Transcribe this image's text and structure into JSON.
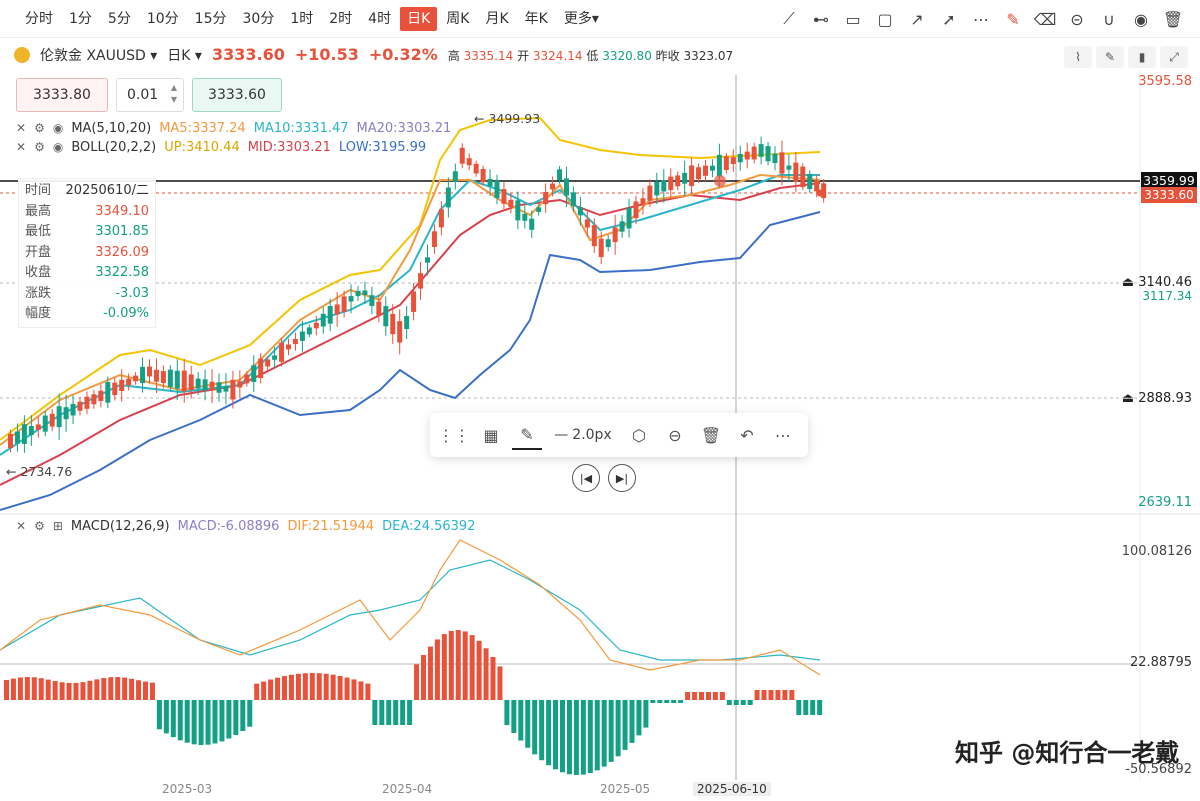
{
  "periods": [
    "分时",
    "1分",
    "5分",
    "10分",
    "15分",
    "30分",
    "1时",
    "2时",
    "4时",
    "日K",
    "周K",
    "月K",
    "年K",
    "更多▾"
  ],
  "active_period": "日K",
  "toolbar_icons": [
    "trendline-icon",
    "horizontal-line-icon",
    "rectangle-icon",
    "comment-icon",
    "arrow-line-icon",
    "arrow-icon",
    "more-dots-icon",
    "edit-highlight-icon",
    "eraser-icon",
    "lock-icon",
    "magnet-icon",
    "eye-icon",
    "trash-icon"
  ],
  "symbol": {
    "name": "伦敦金",
    "code": "XAUUSD",
    "period": "日K",
    "price": "3333.60",
    "change": "+10.53",
    "change_pct": "+0.32%",
    "high_label": "高",
    "high": "3335.14",
    "open_label": "开",
    "open": "3324.14",
    "low_label": "低",
    "low": "3320.80",
    "prev_label": "昨收",
    "prev": "3323.07"
  },
  "order": {
    "sell": "3333.80",
    "qty": "0.01",
    "buy": "3333.60"
  },
  "ma_legend": {
    "name": "MA(5,10,20)",
    "ma5": "MA5:3337.24",
    "ma10": "MA10:3331.47",
    "ma20": "MA20:3303.21"
  },
  "boll_legend": {
    "name": "BOLL(20,2,2)",
    "up": "UP:3410.44",
    "mid": "MID:3303.21",
    "low": "LOW:3195.99"
  },
  "macd_legend": {
    "name": "MACD(12,26,9)",
    "macd": "MACD:-6.08896",
    "dif": "DIF:21.51944",
    "dea": "DEA:24.56392"
  },
  "info": {
    "time_label": "时间",
    "time": "20250610/二",
    "high_label": "最高",
    "high": "3349.10",
    "low_label": "最低",
    "low": "3301.85",
    "open_label": "开盘",
    "open": "3326.09",
    "close_label": "收盘",
    "close": "3322.58",
    "chg_label": "涨跌",
    "chg": "-3.03",
    "amp_label": "幅度",
    "amp": "-0.09%"
  },
  "draw_toolbar": {
    "width_label": "2.0px"
  },
  "price_axis": {
    "top": "3595.58",
    "crosshair": "3359.99",
    "current": "3333.60",
    "alert1": "3140.46",
    "hidden1": "3117.34",
    "alert2": "2888.93",
    "bottom": "2639.11",
    "max_mark": "3499.93",
    "min_mark": "2734.76"
  },
  "macd_axis": {
    "top": "100.08126",
    "mid": "22.88795",
    "bottom": "-50.56892"
  },
  "x_labels": [
    "2025-03",
    "2025-04",
    "2025-05"
  ],
  "x_cursor": "2025-06-10",
  "watermark": "知乎 @知行合一老戴",
  "colors": {
    "up": "#e8523a",
    "down": "#14a085",
    "ma5": "#f29a3e",
    "ma10": "#2ab6c9",
    "ma20": "#d8404c",
    "boll_up": "#f5c400",
    "boll_low": "#3b6fc7",
    "dea": "#2ab6c9",
    "dif": "#f29a3e"
  }
}
